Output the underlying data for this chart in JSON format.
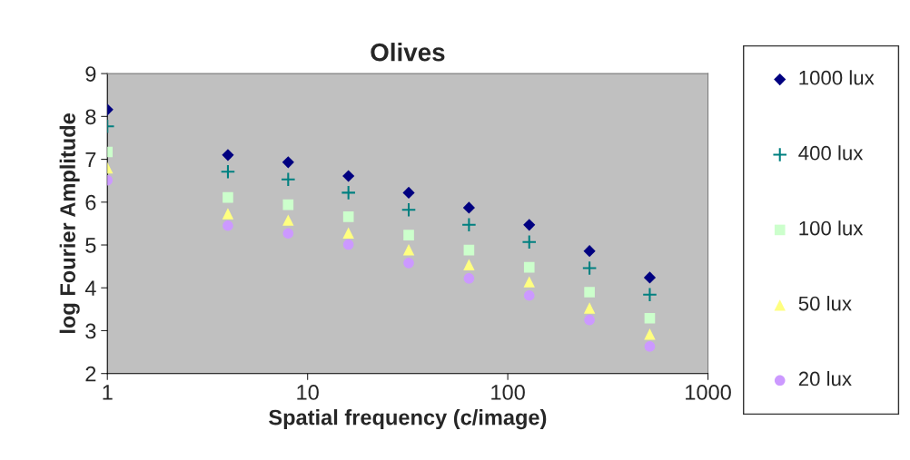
{
  "chart_data": {
    "type": "scatter",
    "title": "Olives",
    "xlabel": "Spatial frequency (c/image)",
    "ylabel": "log Fourier Amplitude",
    "x": [
      1,
      4,
      8,
      16,
      32,
      64,
      128,
      256,
      512
    ],
    "series": [
      {
        "name": "1000 lux",
        "color": "#000080",
        "marker": "diamond",
        "values": [
          8.16,
          7.1,
          6.93,
          6.61,
          6.22,
          5.87,
          5.47,
          4.86,
          4.24
        ]
      },
      {
        "name": "400 lux",
        "color": "#008080",
        "marker": "cross",
        "values": [
          7.77,
          6.71,
          6.53,
          6.22,
          5.82,
          5.47,
          5.07,
          4.46,
          3.84
        ]
      },
      {
        "name": "100 lux",
        "color": "#ccffcc",
        "marker": "square",
        "values": [
          7.17,
          6.11,
          5.94,
          5.66,
          5.23,
          4.88,
          4.48,
          3.9,
          3.29
        ]
      },
      {
        "name": "50 lux",
        "color": "#ffff80",
        "marker": "triangle",
        "values": [
          6.8,
          5.73,
          5.58,
          5.28,
          4.89,
          4.54,
          4.14,
          3.53,
          2.92
        ]
      },
      {
        "name": "20 lux",
        "color": "#cc99ff",
        "marker": "circle",
        "values": [
          6.51,
          5.45,
          5.27,
          5.01,
          4.58,
          4.22,
          3.82,
          3.25,
          2.63
        ]
      }
    ],
    "log": "x",
    "xlim": [
      1,
      1000
    ],
    "xticks": [
      1,
      10,
      100,
      1000
    ],
    "ylim": [
      2,
      9
    ],
    "yticks": [
      2,
      3,
      4,
      5,
      6,
      7,
      8,
      9
    ],
    "grid": false,
    "legend": "right"
  }
}
